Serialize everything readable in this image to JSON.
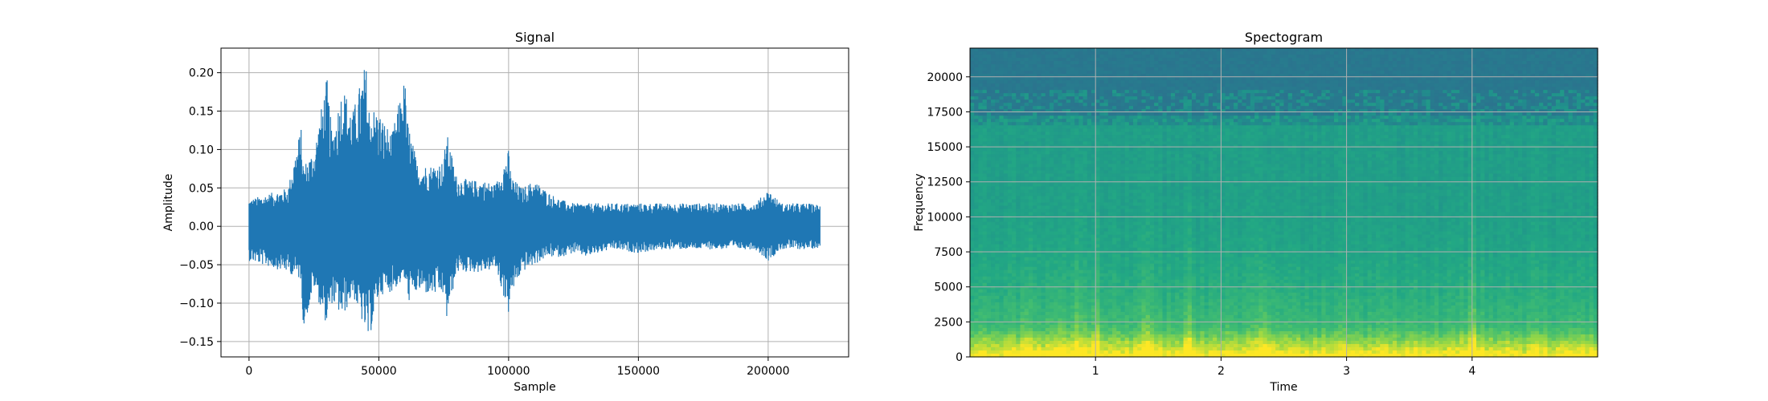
{
  "chart_data": [
    {
      "type": "line",
      "title": "Signal",
      "xlabel": "Sample",
      "ylabel": "Amplitude",
      "xlim": [
        -10800,
        231000
      ],
      "ylim": [
        -0.17,
        0.232
      ],
      "xticks": [
        0,
        50000,
        100000,
        150000,
        200000
      ],
      "xtick_labels": [
        "0",
        "50000",
        "100000",
        "150000",
        "200000"
      ],
      "yticks": [
        -0.15,
        -0.1,
        -0.05,
        0.0,
        0.05,
        0.1,
        0.15,
        0.2
      ],
      "ytick_labels": [
        "−0.15",
        "−0.10",
        "−0.05",
        "0.00",
        "0.05",
        "0.10",
        "0.15",
        "0.20"
      ],
      "grid": true,
      "line_color": "#1f77b4",
      "series": [
        {
          "x": [
            0,
            5000,
            10000,
            15000,
            20000,
            21000,
            25000,
            30000,
            32000,
            36000,
            40000,
            45000,
            46000,
            50000,
            55000,
            60000,
            61000,
            65000,
            70000,
            75000,
            76000,
            80000,
            85000,
            90000,
            95000,
            100000,
            101000,
            105000,
            110000,
            115000,
            120000,
            125000,
            130000,
            140000,
            150000,
            160000,
            170000,
            180000,
            190000,
            195000,
            200000,
            205000,
            210000,
            215000,
            220000
          ],
          "upper": [
            0.035,
            0.04,
            0.045,
            0.05,
            0.13,
            0.08,
            0.1,
            0.195,
            0.12,
            0.185,
            0.15,
            0.215,
            0.16,
            0.15,
            0.12,
            0.195,
            0.14,
            0.08,
            0.08,
            0.085,
            0.125,
            0.065,
            0.06,
            0.06,
            0.055,
            0.1,
            0.065,
            0.05,
            0.06,
            0.045,
            0.035,
            0.03,
            0.03,
            0.03,
            0.03,
            0.03,
            0.03,
            0.03,
            0.03,
            0.03,
            0.048,
            0.03,
            0.03,
            0.03,
            0.028
          ],
          "lower": [
            -0.045,
            -0.05,
            -0.055,
            -0.06,
            -0.07,
            -0.135,
            -0.08,
            -0.13,
            -0.1,
            -0.12,
            -0.09,
            -0.14,
            -0.152,
            -0.09,
            -0.085,
            -0.07,
            -0.1,
            -0.085,
            -0.09,
            -0.09,
            -0.125,
            -0.06,
            -0.06,
            -0.06,
            -0.055,
            -0.115,
            -0.09,
            -0.06,
            -0.05,
            -0.04,
            -0.04,
            -0.035,
            -0.04,
            -0.03,
            -0.035,
            -0.03,
            -0.03,
            -0.03,
            -0.03,
            -0.03,
            -0.045,
            -0.03,
            -0.03,
            -0.03,
            -0.028
          ]
        }
      ]
    },
    {
      "type": "heatmap",
      "title": "Spectogram",
      "xlabel": "Time",
      "ylabel": "Frequency",
      "xlim": [
        0,
        5.0
      ],
      "ylim": [
        0,
        22050
      ],
      "xticks": [
        1,
        2,
        3,
        4
      ],
      "xtick_labels": [
        "1",
        "2",
        "3",
        "4"
      ],
      "yticks": [
        0,
        2500,
        5000,
        7500,
        10000,
        12500,
        15000,
        17500,
        20000
      ],
      "ytick_labels": [
        "0",
        "2500",
        "5000",
        "7500",
        "10000",
        "12500",
        "15000",
        "17500",
        "20000"
      ],
      "grid": true,
      "colormap": "viridis",
      "cutoff_frequency": 16500,
      "bright_times": [
        0.45,
        0.7,
        0.85,
        1.0,
        1.4,
        1.75,
        2.35,
        4.0
      ]
    }
  ]
}
